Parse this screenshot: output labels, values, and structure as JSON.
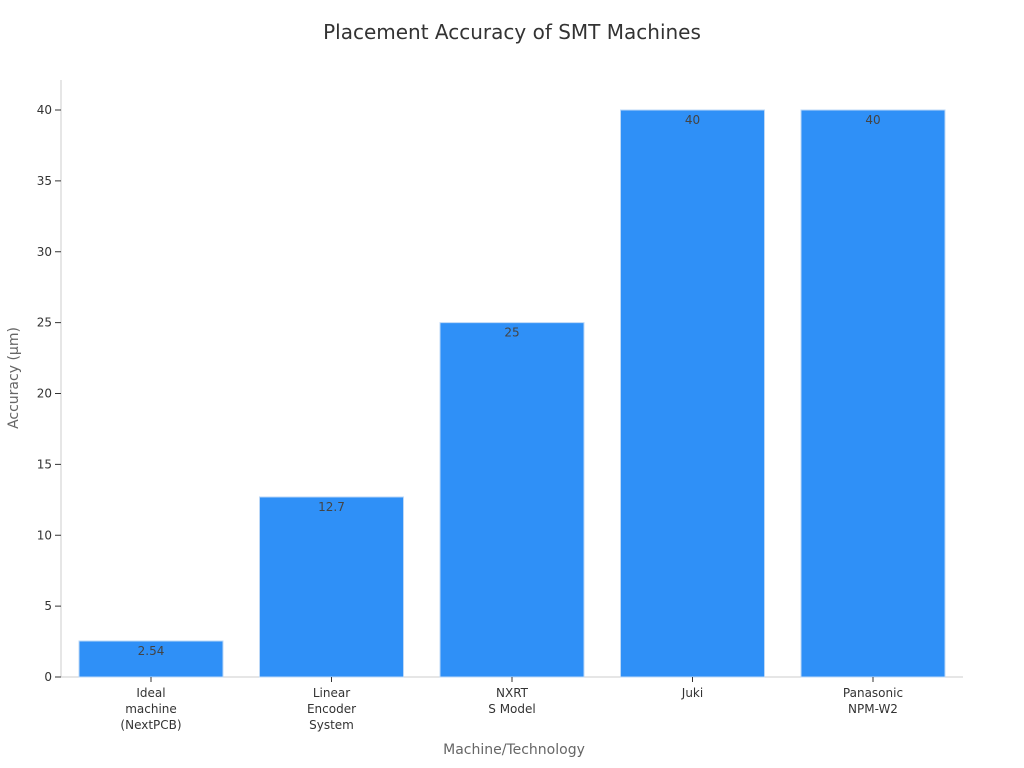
{
  "chart_data": {
    "type": "bar",
    "title": "Placement Accuracy of SMT Machines",
    "xlabel": "Machine/Technology",
    "ylabel": "Accuracy (μm)",
    "categories": [
      [
        "Ideal",
        "machine",
        "(NextPCB)"
      ],
      [
        "Linear",
        "Encoder",
        "System"
      ],
      [
        "NXRT",
        "S Model"
      ],
      [
        "Juki"
      ],
      [
        "Panasonic",
        "NPM-W2"
      ]
    ],
    "values": [
      2.54,
      12.7,
      25,
      40,
      40
    ],
    "value_labels": [
      "2.54",
      "12.7",
      "25",
      "40",
      "40"
    ],
    "yticks": [
      0,
      5,
      10,
      15,
      20,
      25,
      30,
      35,
      40
    ],
    "ylim": [
      0,
      42
    ],
    "grid": false,
    "legend": "none",
    "bar_color": "#2f90f7"
  }
}
